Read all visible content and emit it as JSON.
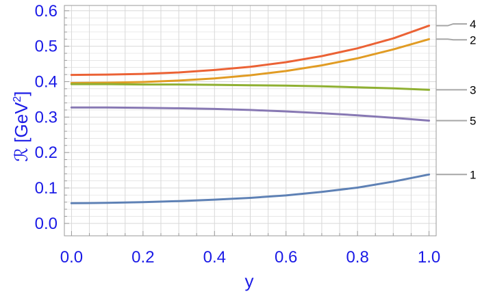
{
  "chart_data": {
    "type": "line",
    "xlabel": "y",
    "ylabel": "ℛ [GeV²]",
    "ylabel_parts": {
      "main": "ℛ [GeV",
      "sup": "2",
      "end": "]"
    },
    "xlim": [
      -0.02,
      1.02
    ],
    "ylim": [
      -0.035,
      0.615
    ],
    "xticks": [
      "0.0",
      "0.2",
      "0.4",
      "0.6",
      "0.8",
      "1.0"
    ],
    "xtick_values": [
      0.0,
      0.2,
      0.4,
      0.6,
      0.8,
      1.0
    ],
    "yticks": [
      "0.0",
      "0.1",
      "0.2",
      "0.3",
      "0.4",
      "0.5",
      "0.6"
    ],
    "ytick_values": [
      0.0,
      0.1,
      0.2,
      0.3,
      0.4,
      0.5,
      0.6
    ],
    "grid": true,
    "frame_color": "#9a9a9a",
    "grid_color": "#d8d8d8",
    "leader_color": "#a6a6a6",
    "x": [
      0.0,
      0.1,
      0.2,
      0.3,
      0.4,
      0.5,
      0.6,
      0.7,
      0.8,
      0.9,
      1.0
    ],
    "series": [
      {
        "name": "1",
        "color": "#5e81b5",
        "label_value": 0.138,
        "values": [
          0.057,
          0.058,
          0.06,
          0.063,
          0.067,
          0.072,
          0.079,
          0.089,
          0.101,
          0.118,
          0.138
        ]
      },
      {
        "name": "2",
        "color": "#e19c24",
        "label_value": 0.518,
        "values": [
          0.396,
          0.397,
          0.399,
          0.403,
          0.409,
          0.418,
          0.43,
          0.446,
          0.466,
          0.491,
          0.52
        ]
      },
      {
        "name": "3",
        "color": "#8fb032",
        "label_value": 0.377,
        "values": [
          0.393,
          0.393,
          0.392,
          0.392,
          0.391,
          0.39,
          0.389,
          0.387,
          0.384,
          0.381,
          0.377
        ]
      },
      {
        "name": "4",
        "color": "#eb6235",
        "label_value": 0.563,
        "values": [
          0.419,
          0.42,
          0.422,
          0.426,
          0.433,
          0.442,
          0.455,
          0.472,
          0.494,
          0.522,
          0.558
        ]
      },
      {
        "name": "5",
        "color": "#8778b3",
        "label_value": 0.29,
        "values": [
          0.327,
          0.327,
          0.326,
          0.325,
          0.323,
          0.32,
          0.316,
          0.311,
          0.305,
          0.298,
          0.29
        ]
      }
    ]
  }
}
